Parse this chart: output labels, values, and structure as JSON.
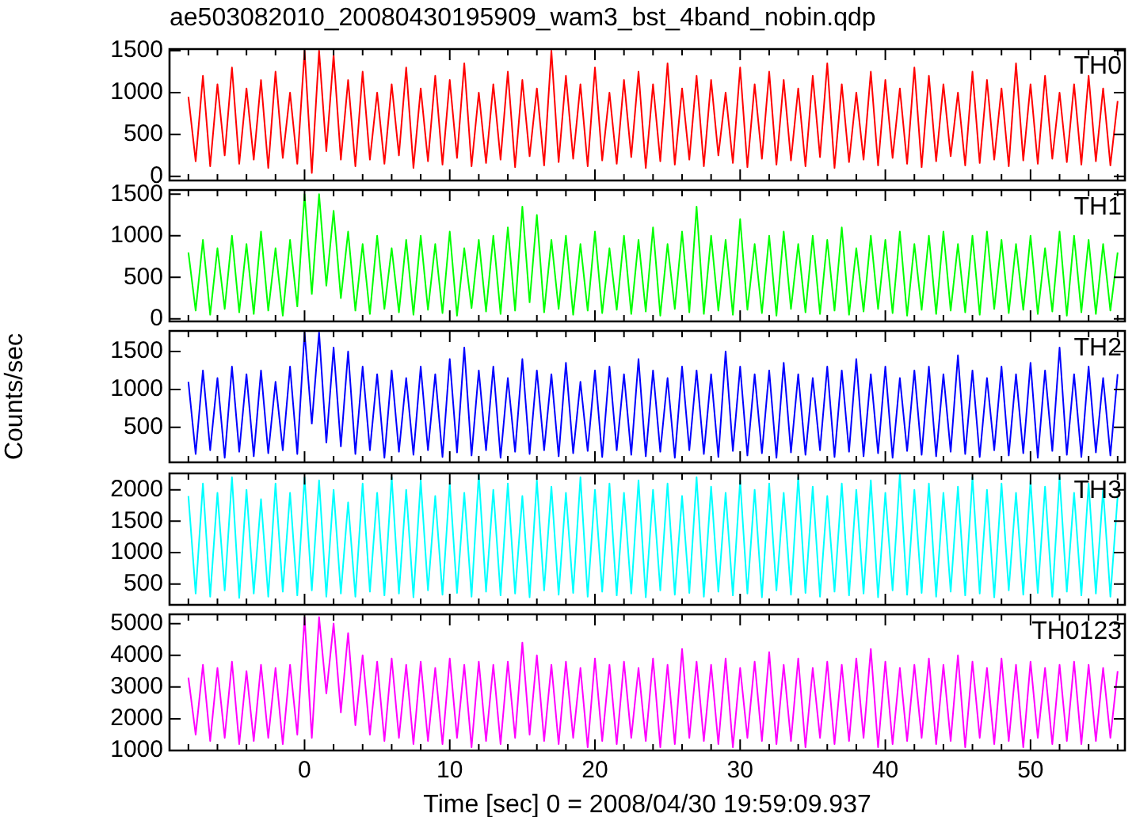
{
  "chart_data": [
    {
      "type": "line",
      "title": "ae503082010_20080430195909_wam3_bst_4band_nobin.qdp",
      "marker": "none",
      "tick_labels": "y",
      "x": [
        -8,
        -7.5,
        -7,
        -6.5,
        -6,
        -5.5,
        -5,
        -4.5,
        -4,
        -3.5,
        -3,
        -2.5,
        -2,
        -1.5,
        -1,
        -0.5,
        0,
        0.5,
        1,
        1.5,
        2,
        2.5,
        3,
        3.5,
        4,
        4.5,
        5,
        5.5,
        6,
        6.5,
        7,
        7.5,
        8,
        8.5,
        9,
        9.5,
        10,
        10.5,
        11,
        11.5,
        12,
        12.5,
        13,
        13.5,
        14,
        14.5,
        15,
        15.5,
        16,
        16.5,
        17,
        17.5,
        18,
        18.5,
        19,
        19.5,
        20,
        20.5,
        21,
        21.5,
        22,
        22.5,
        23,
        23.5,
        24,
        24.5,
        25,
        25.5,
        26,
        26.5,
        27,
        27.5,
        28,
        28.5,
        29,
        29.5,
        30,
        30.5,
        31,
        31.5,
        32,
        32.5,
        33,
        33.5,
        34,
        34.5,
        35,
        35.5,
        36,
        36.5,
        37,
        37.5,
        38,
        38.5,
        39,
        39.5,
        40,
        40.5,
        41,
        41.5,
        42,
        42.5,
        43,
        43.5,
        44,
        44.5,
        45,
        45.5,
        46,
        46.5,
        47,
        47.5,
        48,
        48.5,
        49,
        49.5,
        50,
        50.5,
        51,
        51.5,
        52,
        52.5,
        53,
        53.5,
        54,
        54.5,
        55,
        55.5,
        56
      ],
      "series": [
        {
          "name": "TH0",
          "color": "#ff0000",
          "values": [
            950,
            180,
            1200,
            120,
            1100,
            250,
            1300,
            150,
            1050,
            200,
            1150,
            100,
            1250,
            220,
            1000,
            150,
            1500,
            40,
            1500,
            300,
            1450,
            200,
            1150,
            120,
            1250,
            200,
            1000,
            150,
            1100,
            250,
            1300,
            100,
            1050,
            180,
            1200,
            140,
            1150,
            220,
            1350,
            120,
            1000,
            160,
            1100,
            200,
            1250,
            110,
            1150,
            240,
            1050,
            130,
            1500,
            170,
            1200,
            210,
            1100,
            120,
            1300,
            190,
            1000,
            150,
            1150,
            230,
            1250,
            100,
            1100,
            180,
            1350,
            140,
            1050,
            200,
            1200,
            120,
            1150,
            250,
            1000,
            160,
            1300,
            110,
            1100,
            210,
            1250,
            140,
            1150,
            190,
            1050,
            120,
            1200,
            230,
            1350,
            100,
            1100,
            170,
            1000,
            200,
            1250,
            130,
            1150,
            220,
            1050,
            150,
            1300,
            110,
            1200,
            180,
            1100,
            240,
            1000,
            130,
            1250,
            160,
            1150,
            200,
            1050,
            120,
            1350,
            190,
            1100,
            150,
            1200,
            210,
            1000,
            170,
            1100,
            140,
            1200,
            180,
            1050,
            130,
            900
          ]
        }
      ],
      "xlim": [
        -9.3,
        56.5
      ],
      "ylim": [
        -50,
        1520
      ],
      "yticks": [
        0,
        500,
        1000,
        1500
      ],
      "xticks": [
        {
          "value": -8,
          "label": null
        },
        {
          "value": -6,
          "label": null
        },
        {
          "value": -4,
          "label": null
        },
        {
          "value": -2,
          "label": null
        },
        0,
        {
          "value": 2,
          "label": null
        },
        {
          "value": 4,
          "label": null
        },
        {
          "value": 6,
          "label": null
        },
        {
          "value": 8,
          "label": null
        },
        10,
        {
          "value": 12,
          "label": null
        },
        {
          "value": 14,
          "label": null
        },
        {
          "value": 16,
          "label": null
        },
        {
          "value": 18,
          "label": null
        },
        20,
        {
          "value": 22,
          "label": null
        },
        {
          "value": 24,
          "label": null
        },
        {
          "value": 26,
          "label": null
        },
        {
          "value": 28,
          "label": null
        },
        30,
        {
          "value": 32,
          "label": null
        },
        {
          "value": 34,
          "label": null
        },
        {
          "value": 36,
          "label": null
        },
        {
          "value": 38,
          "label": null
        },
        40,
        {
          "value": 42,
          "label": null
        },
        {
          "value": 44,
          "label": null
        },
        {
          "value": 46,
          "label": null
        },
        {
          "value": 48,
          "label": null
        },
        50,
        {
          "value": 52,
          "label": null
        },
        {
          "value": 54,
          "label": null
        },
        {
          "value": 56,
          "label": null
        }
      ]
    },
    {
      "type": "line",
      "marker": "none",
      "tick_labels": "y",
      "x": [
        -8,
        -7.5,
        -7,
        -6.5,
        -6,
        -5.5,
        -5,
        -4.5,
        -4,
        -3.5,
        -3,
        -2.5,
        -2,
        -1.5,
        -1,
        -0.5,
        0,
        0.5,
        1,
        1.5,
        2,
        2.5,
        3,
        3.5,
        4,
        4.5,
        5,
        5.5,
        6,
        6.5,
        7,
        7.5,
        8,
        8.5,
        9,
        9.5,
        10,
        10.5,
        11,
        11.5,
        12,
        12.5,
        13,
        13.5,
        14,
        14.5,
        15,
        15.5,
        16,
        16.5,
        17,
        17.5,
        18,
        18.5,
        19,
        19.5,
        20,
        20.5,
        21,
        21.5,
        22,
        22.5,
        23,
        23.5,
        24,
        24.5,
        25,
        25.5,
        26,
        26.5,
        27,
        27.5,
        28,
        28.5,
        29,
        29.5,
        30,
        30.5,
        31,
        31.5,
        32,
        32.5,
        33,
        33.5,
        34,
        34.5,
        35,
        35.5,
        36,
        36.5,
        37,
        37.5,
        38,
        38.5,
        39,
        39.5,
        40,
        40.5,
        41,
        41.5,
        42,
        42.5,
        43,
        43.5,
        44,
        44.5,
        45,
        45.5,
        46,
        46.5,
        47,
        47.5,
        48,
        48.5,
        49,
        49.5,
        50,
        50.5,
        51,
        51.5,
        52,
        52.5,
        53,
        53.5,
        54,
        54.5,
        55,
        55.5,
        56
      ],
      "series": [
        {
          "name": "TH1",
          "color": "#00ff00",
          "values": [
            800,
            100,
            950,
            50,
            850,
            120,
            1000,
            80,
            900,
            60,
            1050,
            100,
            850,
            40,
            950,
            150,
            1500,
            300,
            1500,
            400,
            1300,
            250,
            1050,
            100,
            900,
            60,
            1000,
            120,
            850,
            80,
            950,
            50,
            1000,
            110,
            900,
            70,
            1050,
            40,
            850,
            130,
            950,
            90,
            1000,
            60,
            1100,
            100,
            1350,
            200,
            1250,
            80,
            950,
            120,
            1000,
            50,
            900,
            100,
            1050,
            70,
            850,
            110,
            1000,
            60,
            950,
            90,
            1100,
            40,
            900,
            120,
            1050,
            80,
            1350,
            60,
            1000,
            100,
            950,
            50,
            1200,
            110,
            900,
            70,
            1000,
            40,
            1050,
            120,
            900,
            80,
            1000,
            60,
            950,
            100,
            1100,
            50,
            850,
            90,
            1000,
            120,
            950,
            70,
            1050,
            40,
            900,
            110,
            1000,
            60,
            1050,
            100,
            900,
            80,
            1000,
            50,
            1050,
            120,
            950,
            70,
            900,
            110,
            1000,
            60,
            850,
            90,
            1050,
            40,
            1000,
            80,
            950,
            60,
            900,
            100,
            800
          ]
        }
      ],
      "xlim": [
        -9.3,
        56.5
      ],
      "ylim": [
        -30,
        1550
      ],
      "yticks": [
        0,
        500,
        1000,
        1500
      ],
      "xticks": [
        {
          "value": -8,
          "label": null
        },
        {
          "value": -6,
          "label": null
        },
        {
          "value": -4,
          "label": null
        },
        {
          "value": -2,
          "label": null
        },
        0,
        {
          "value": 2,
          "label": null
        },
        {
          "value": 4,
          "label": null
        },
        {
          "value": 6,
          "label": null
        },
        {
          "value": 8,
          "label": null
        },
        10,
        {
          "value": 12,
          "label": null
        },
        {
          "value": 14,
          "label": null
        },
        {
          "value": 16,
          "label": null
        },
        {
          "value": 18,
          "label": null
        },
        20,
        {
          "value": 22,
          "label": null
        },
        {
          "value": 24,
          "label": null
        },
        {
          "value": 26,
          "label": null
        },
        {
          "value": 28,
          "label": null
        },
        30,
        {
          "value": 32,
          "label": null
        },
        {
          "value": 34,
          "label": null
        },
        {
          "value": 36,
          "label": null
        },
        {
          "value": 38,
          "label": null
        },
        40,
        {
          "value": 42,
          "label": null
        },
        {
          "value": 44,
          "label": null
        },
        {
          "value": 46,
          "label": null
        },
        {
          "value": 48,
          "label": null
        },
        50,
        {
          "value": 52,
          "label": null
        },
        {
          "value": 54,
          "label": null
        },
        {
          "value": 56,
          "label": null
        }
      ]
    },
    {
      "type": "line",
      "ylabel": "Counts/sec",
      "marker": "none",
      "tick_labels": "y",
      "x": [
        -8,
        -7.5,
        -7,
        -6.5,
        -6,
        -5.5,
        -5,
        -4.5,
        -4,
        -3.5,
        -3,
        -2.5,
        -2,
        -1.5,
        -1,
        -0.5,
        0,
        0.5,
        1,
        1.5,
        2,
        2.5,
        3,
        3.5,
        4,
        4.5,
        5,
        5.5,
        6,
        6.5,
        7,
        7.5,
        8,
        8.5,
        9,
        9.5,
        10,
        10.5,
        11,
        11.5,
        12,
        12.5,
        13,
        13.5,
        14,
        14.5,
        15,
        15.5,
        16,
        16.5,
        17,
        17.5,
        18,
        18.5,
        19,
        19.5,
        20,
        20.5,
        21,
        21.5,
        22,
        22.5,
        23,
        23.5,
        24,
        24.5,
        25,
        25.5,
        26,
        26.5,
        27,
        27.5,
        28,
        28.5,
        29,
        29.5,
        30,
        30.5,
        31,
        31.5,
        32,
        32.5,
        33,
        33.5,
        34,
        34.5,
        35,
        35.5,
        36,
        36.5,
        37,
        37.5,
        38,
        38.5,
        39,
        39.5,
        40,
        40.5,
        41,
        41.5,
        42,
        42.5,
        43,
        43.5,
        44,
        44.5,
        45,
        45.5,
        46,
        46.5,
        47,
        47.5,
        48,
        48.5,
        49,
        49.5,
        50,
        50.5,
        51,
        51.5,
        52,
        52.5,
        53,
        53.5,
        54,
        54.5,
        55,
        55.5,
        56
      ],
      "series": [
        {
          "name": "TH2",
          "color": "#0000ff",
          "values": [
            1100,
            150,
            1250,
            200,
            1150,
            100,
            1300,
            180,
            1200,
            120,
            1250,
            160,
            1100,
            200,
            1300,
            150,
            1750,
            550,
            1750,
            300,
            1550,
            250,
            1500,
            150,
            1300,
            200,
            1200,
            100,
            1250,
            180,
            1150,
            140,
            1300,
            200,
            1200,
            110,
            1400,
            170,
            1550,
            130,
            1250,
            200,
            1300,
            100,
            1150,
            180,
            1400,
            150,
            1250,
            200,
            1200,
            120,
            1350,
            160,
            1100,
            190,
            1250,
            110,
            1300,
            200,
            1200,
            140,
            1400,
            120,
            1250,
            180,
            1150,
            100,
            1300,
            200,
            1250,
            150,
            1200,
            110,
            1500,
            190,
            1300,
            130,
            1200,
            160,
            1250,
            100,
            1350,
            170,
            1200,
            140,
            1150,
            200,
            1300,
            110,
            1250,
            180,
            1400,
            120,
            1200,
            160,
            1300,
            100,
            1150,
            190,
            1250,
            140,
            1300,
            120,
            1200,
            180,
            1450,
            150,
            1250,
            110,
            1150,
            200,
            1300,
            130,
            1200,
            160,
            1350,
            100,
            1250,
            190,
            1550,
            140,
            1200,
            110,
            1300,
            170,
            1150,
            130,
            1200
          ]
        }
      ],
      "xlim": [
        -9.3,
        56.5
      ],
      "ylim": [
        40,
        1770
      ],
      "yticks": [
        500,
        1000,
        1500
      ],
      "xticks": [
        {
          "value": -8,
          "label": null
        },
        {
          "value": -6,
          "label": null
        },
        {
          "value": -4,
          "label": null
        },
        {
          "value": -2,
          "label": null
        },
        0,
        {
          "value": 2,
          "label": null
        },
        {
          "value": 4,
          "label": null
        },
        {
          "value": 6,
          "label": null
        },
        {
          "value": 8,
          "label": null
        },
        10,
        {
          "value": 12,
          "label": null
        },
        {
          "value": 14,
          "label": null
        },
        {
          "value": 16,
          "label": null
        },
        {
          "value": 18,
          "label": null
        },
        20,
        {
          "value": 22,
          "label": null
        },
        {
          "value": 24,
          "label": null
        },
        {
          "value": 26,
          "label": null
        },
        {
          "value": 28,
          "label": null
        },
        30,
        {
          "value": 32,
          "label": null
        },
        {
          "value": 34,
          "label": null
        },
        {
          "value": 36,
          "label": null
        },
        {
          "value": 38,
          "label": null
        },
        40,
        {
          "value": 42,
          "label": null
        },
        {
          "value": 44,
          "label": null
        },
        {
          "value": 46,
          "label": null
        },
        {
          "value": 48,
          "label": null
        },
        50,
        {
          "value": 52,
          "label": null
        },
        {
          "value": 54,
          "label": null
        },
        {
          "value": 56,
          "label": null
        }
      ]
    },
    {
      "type": "line",
      "marker": "none",
      "tick_labels": "y",
      "x": [
        -8,
        -7.5,
        -7,
        -6.5,
        -6,
        -5.5,
        -5,
        -4.5,
        -4,
        -3.5,
        -3,
        -2.5,
        -2,
        -1.5,
        -1,
        -0.5,
        0,
        0.5,
        1,
        1.5,
        2,
        2.5,
        3,
        3.5,
        4,
        4.5,
        5,
        5.5,
        6,
        6.5,
        7,
        7.5,
        8,
        8.5,
        9,
        9.5,
        10,
        10.5,
        11,
        11.5,
        12,
        12.5,
        13,
        13.5,
        14,
        14.5,
        15,
        15.5,
        16,
        16.5,
        17,
        17.5,
        18,
        18.5,
        19,
        19.5,
        20,
        20.5,
        21,
        21.5,
        22,
        22.5,
        23,
        23.5,
        24,
        24.5,
        25,
        25.5,
        26,
        26.5,
        27,
        27.5,
        28,
        28.5,
        29,
        29.5,
        30,
        30.5,
        31,
        31.5,
        32,
        32.5,
        33,
        33.5,
        34,
        34.5,
        35,
        35.5,
        36,
        36.5,
        37,
        37.5,
        38,
        38.5,
        39,
        39.5,
        40,
        40.5,
        41,
        41.5,
        42,
        42.5,
        43,
        43.5,
        44,
        44.5,
        45,
        45.5,
        46,
        46.5,
        47,
        47.5,
        48,
        48.5,
        49,
        49.5,
        50,
        50.5,
        51,
        51.5,
        52,
        52.5,
        53,
        53.5,
        54,
        54.5,
        55,
        55.5,
        56
      ],
      "series": [
        {
          "name": "TH3",
          "color": "#00ffff",
          "values": [
            1900,
            350,
            2100,
            300,
            1950,
            400,
            2200,
            280,
            2000,
            350,
            1850,
            300,
            2100,
            380,
            1950,
            320,
            2200,
            400,
            2150,
            300,
            2000,
            350,
            1800,
            300,
            2100,
            380,
            1950,
            320,
            2200,
            350,
            2000,
            290,
            2150,
            400,
            1900,
            330,
            2100,
            360,
            1950,
            300,
            2250,
            380,
            2000,
            320,
            2100,
            350,
            1900,
            290,
            2150,
            400,
            2050,
            330,
            1950,
            360,
            2200,
            300,
            2000,
            380,
            2100,
            320,
            1950,
            350,
            2150,
            290,
            2000,
            400,
            2100,
            330,
            1900,
            360,
            2200,
            300,
            2050,
            380,
            1950,
            320,
            2150,
            350,
            2000,
            290,
            2100,
            400,
            1950,
            330,
            2200,
            360,
            2050,
            300,
            1900,
            380,
            2100,
            320,
            2000,
            350,
            2150,
            290,
            1950,
            400,
            2250,
            330,
            2000,
            360,
            2100,
            300,
            1950,
            380,
            2050,
            320,
            2200,
            350,
            2000,
            290,
            2100,
            400,
            1950,
            330,
            2150,
            360,
            2050,
            300,
            2200,
            380,
            1950,
            320,
            2100,
            350,
            2000,
            300,
            1900
          ]
        }
      ],
      "xlim": [
        -9.3,
        56.5
      ],
      "ylim": [
        170,
        2260
      ],
      "yticks": [
        500,
        1000,
        1500,
        2000
      ],
      "xticks": [
        {
          "value": -8,
          "label": null
        },
        {
          "value": -6,
          "label": null
        },
        {
          "value": -4,
          "label": null
        },
        {
          "value": -2,
          "label": null
        },
        0,
        {
          "value": 2,
          "label": null
        },
        {
          "value": 4,
          "label": null
        },
        {
          "value": 6,
          "label": null
        },
        {
          "value": 8,
          "label": null
        },
        10,
        {
          "value": 12,
          "label": null
        },
        {
          "value": 14,
          "label": null
        },
        {
          "value": 16,
          "label": null
        },
        {
          "value": 18,
          "label": null
        },
        20,
        {
          "value": 22,
          "label": null
        },
        {
          "value": 24,
          "label": null
        },
        {
          "value": 26,
          "label": null
        },
        {
          "value": 28,
          "label": null
        },
        30,
        {
          "value": 32,
          "label": null
        },
        {
          "value": 34,
          "label": null
        },
        {
          "value": 36,
          "label": null
        },
        {
          "value": 38,
          "label": null
        },
        40,
        {
          "value": 42,
          "label": null
        },
        {
          "value": 44,
          "label": null
        },
        {
          "value": 46,
          "label": null
        },
        {
          "value": 48,
          "label": null
        },
        50,
        {
          "value": 52,
          "label": null
        },
        {
          "value": 54,
          "label": null
        },
        {
          "value": 56,
          "label": null
        }
      ]
    },
    {
      "type": "line",
      "xlabel": "Time [sec] 0 = 2008/04/30 19:59:09.937",
      "marker": "none",
      "x": [
        -8,
        -7.5,
        -7,
        -6.5,
        -6,
        -5.5,
        -5,
        -4.5,
        -4,
        -3.5,
        -3,
        -2.5,
        -2,
        -1.5,
        -1,
        -0.5,
        0,
        0.5,
        1,
        1.5,
        2,
        2.5,
        3,
        3.5,
        4,
        4.5,
        5,
        5.5,
        6,
        6.5,
        7,
        7.5,
        8,
        8.5,
        9,
        9.5,
        10,
        10.5,
        11,
        11.5,
        12,
        12.5,
        13,
        13.5,
        14,
        14.5,
        15,
        15.5,
        16,
        16.5,
        17,
        17.5,
        18,
        18.5,
        19,
        19.5,
        20,
        20.5,
        21,
        21.5,
        22,
        22.5,
        23,
        23.5,
        24,
        24.5,
        25,
        25.5,
        26,
        26.5,
        27,
        27.5,
        28,
        28.5,
        29,
        29.5,
        30,
        30.5,
        31,
        31.5,
        32,
        32.5,
        33,
        33.5,
        34,
        34.5,
        35,
        35.5,
        36,
        36.5,
        37,
        37.5,
        38,
        38.5,
        39,
        39.5,
        40,
        40.5,
        41,
        41.5,
        42,
        42.5,
        43,
        43.5,
        44,
        44.5,
        45,
        45.5,
        46,
        46.5,
        47,
        47.5,
        48,
        48.5,
        49,
        49.5,
        50,
        50.5,
        51,
        51.5,
        52,
        52.5,
        53,
        53.5,
        54,
        54.5,
        55,
        55.5,
        56
      ],
      "series": [
        {
          "name": "TH0123",
          "color": "#ff00ff",
          "values": [
            3300,
            1500,
            3700,
            1300,
            3600,
            1400,
            3800,
            1200,
            3500,
            1300,
            3700,
            1400,
            3600,
            1200,
            3700,
            1500,
            5200,
            1400,
            5200,
            2800,
            5000,
            2200,
            4700,
            1800,
            4000,
            1500,
            3800,
            1300,
            3900,
            1400,
            3700,
            1200,
            3800,
            1300,
            3600,
            1200,
            3900,
            1400,
            3700,
            1100,
            3800,
            1300,
            3700,
            1200,
            3800,
            1400,
            4400,
            1500,
            4000,
            1300,
            3700,
            1200,
            3800,
            1400,
            3600,
            1100,
            3900,
            1300,
            3700,
            1200,
            3800,
            1400,
            3600,
            1300,
            3900,
            1100,
            3700,
            1200,
            4200,
            1400,
            3800,
            1300,
            3700,
            1200,
            3900,
            1100,
            3600,
            1400,
            3800,
            1300,
            4100,
            1200,
            3700,
            1300,
            3900,
            1100,
            3600,
            1400,
            3800,
            1200,
            3700,
            1300,
            3900,
            1400,
            4200,
            1100,
            3800,
            1200,
            3600,
            1300,
            3700,
            1400,
            3900,
            1200,
            3700,
            1300,
            4000,
            1100,
            3800,
            1400,
            3600,
            1200,
            3900,
            1300,
            3700,
            1100,
            3800,
            1400,
            3600,
            1200,
            3700,
            1300,
            3800,
            1200,
            3700,
            1300,
            3600,
            1400,
            3500
          ]
        }
      ],
      "xlim": [
        -9.3,
        56.5
      ],
      "ylim": [
        1000,
        5290
      ],
      "yticks": [
        1000,
        2000,
        3000,
        4000,
        5000
      ],
      "xticks": [
        {
          "value": -8,
          "label": null
        },
        {
          "value": -6,
          "label": null
        },
        {
          "value": -4,
          "label": null
        },
        {
          "value": -2,
          "label": null
        },
        0,
        {
          "value": 2,
          "label": null
        },
        {
          "value": 4,
          "label": null
        },
        {
          "value": 6,
          "label": null
        },
        {
          "value": 8,
          "label": null
        },
        10,
        {
          "value": 12,
          "label": null
        },
        {
          "value": 14,
          "label": null
        },
        {
          "value": 16,
          "label": null
        },
        {
          "value": 18,
          "label": null
        },
        20,
        {
          "value": 22,
          "label": null
        },
        {
          "value": 24,
          "label": null
        },
        {
          "value": 26,
          "label": null
        },
        {
          "value": 28,
          "label": null
        },
        30,
        {
          "value": 32,
          "label": null
        },
        {
          "value": 34,
          "label": null
        },
        {
          "value": 36,
          "label": null
        },
        {
          "value": 38,
          "label": null
        },
        40,
        {
          "value": 42,
          "label": null
        },
        {
          "value": 44,
          "label": null
        },
        {
          "value": 46,
          "label": null
        },
        {
          "value": 48,
          "label": null
        },
        50,
        {
          "value": 52,
          "label": null
        },
        {
          "value": 54,
          "label": null
        },
        {
          "value": 56,
          "label": null
        }
      ]
    }
  ]
}
